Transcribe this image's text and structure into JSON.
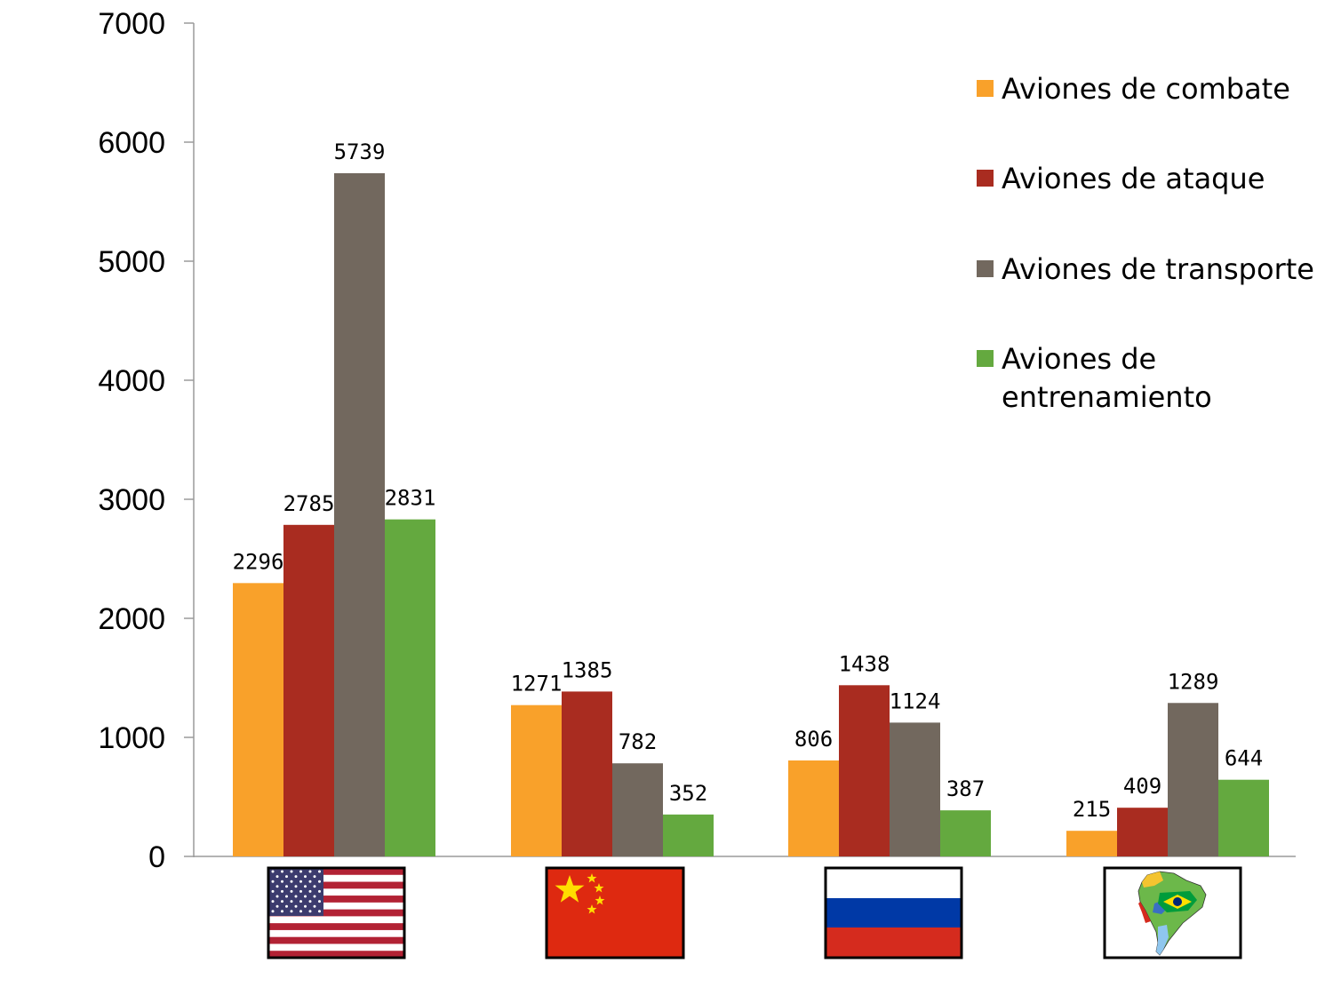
{
  "chart_data": {
    "type": "bar",
    "categories": [
      "United States",
      "China",
      "Russia",
      "South America"
    ],
    "category_icons": [
      "usa-flag-icon",
      "china-flag-icon",
      "russia-flag-icon",
      "south-america-map-icon"
    ],
    "series": [
      {
        "name": "Aviones de combate",
        "color": "#f9a12a",
        "values": [
          2296,
          1271,
          806,
          215
        ]
      },
      {
        "name": "Aviones de ataque",
        "color": "#a92c20",
        "values": [
          2785,
          1385,
          1438,
          409
        ]
      },
      {
        "name": "Aviones de transporte",
        "color": "#72685e",
        "values": [
          5739,
          782,
          1124,
          1289
        ]
      },
      {
        "name": "Aviones de entrenamiento",
        "color": "#64a93f",
        "values": [
          2831,
          352,
          387,
          644
        ]
      }
    ],
    "data_labels": [
      [
        "2296",
        "1271",
        "806",
        "215"
      ],
      [
        "2785",
        "1385",
        "1438",
        "409"
      ],
      [
        "5739",
        "782",
        "1124",
        "1289"
      ],
      [
        "2831",
        "352",
        "387",
        "644"
      ]
    ],
    "legend_lines": [
      [
        "Aviones de combate"
      ],
      [
        "Aviones de ataque"
      ],
      [
        "Aviones de transporte"
      ],
      [
        "Aviones de",
        "entrenamiento"
      ]
    ],
    "y_ticks": [
      "0",
      "1000",
      "2000",
      "3000",
      "4000",
      "5000",
      "6000",
      "7000"
    ],
    "ylim": [
      0,
      7000
    ],
    "title": "",
    "xlabel": "",
    "ylabel": "",
    "grid": false,
    "legend_position": "top-right"
  }
}
